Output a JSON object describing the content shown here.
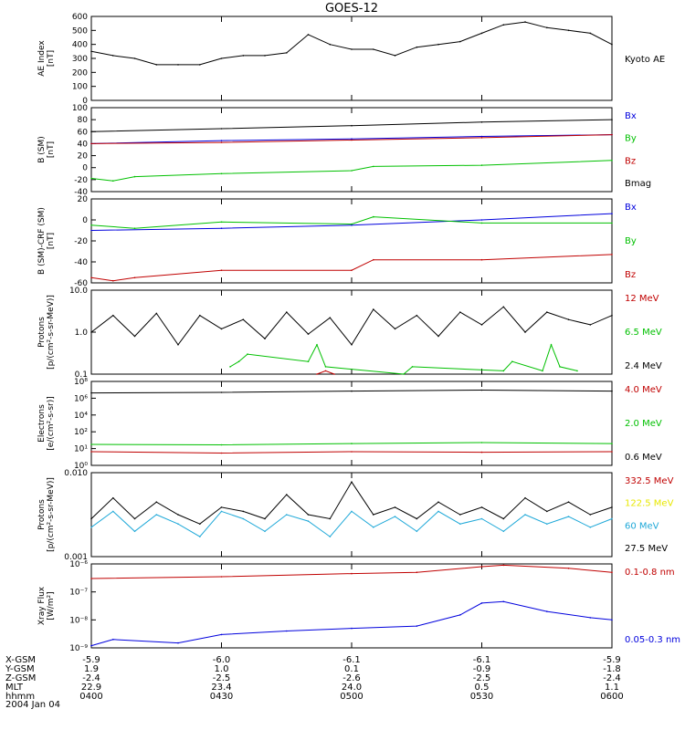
{
  "title": "GOES-12",
  "date_label": "2004 Jan 04",
  "colors": {
    "black": "#000000",
    "red": "#c00000",
    "green": "#00c000",
    "blue": "#0000dd",
    "yellow": "#e8e800",
    "cyan": "#1ea8d8"
  },
  "orbit": {
    "rows": [
      {
        "label": "X-GSM",
        "values": [
          "-5.9",
          "-6.0",
          "-6.1",
          "-6.1",
          "-5.9"
        ]
      },
      {
        "label": "Y-GSM",
        "values": [
          "1.9",
          "1.0",
          "0.1",
          "-0.9",
          "-1.8"
        ]
      },
      {
        "label": "Z-GSM",
        "values": [
          "-2.4",
          "-2.5",
          "-2.6",
          "-2.5",
          "-2.4"
        ]
      },
      {
        "label": "MLT",
        "values": [
          "22.9",
          "23.4",
          "24.0",
          "0.5",
          "1.1"
        ]
      },
      {
        "label": "hhmm",
        "values": [
          "0400",
          "0430",
          "0500",
          "0530",
          "0600"
        ]
      }
    ]
  },
  "chart_data": [
    {
      "type": "line",
      "ylabel": [
        "AE Index",
        "[nT]"
      ],
      "ylim": [
        0,
        600
      ],
      "ytick_labels": [
        "0",
        "100",
        "200",
        "300",
        "400",
        "500",
        "600"
      ],
      "series": [
        {
          "name": "Kyoto AE",
          "color": "black",
          "x_minutes": [
            0,
            5,
            10,
            15,
            20,
            25,
            30,
            35,
            40,
            45,
            50,
            55,
            60,
            65,
            70,
            75,
            80,
            85,
            90,
            95,
            100,
            105,
            110,
            115,
            120
          ],
          "values": [
            350,
            320,
            300,
            255,
            255,
            255,
            300,
            320,
            320,
            340,
            470,
            400,
            365,
            365,
            320,
            380,
            400,
            420,
            480,
            540,
            560,
            520,
            500,
            480,
            400
          ]
        }
      ]
    },
    {
      "type": "line",
      "ylabel": [
        "B (SM)",
        "[nT]"
      ],
      "ylim": [
        -40,
        100
      ],
      "ytick_labels": [
        "-40",
        "-20",
        "0",
        "20",
        "40",
        "60",
        "80",
        "100"
      ],
      "series": [
        {
          "name": "Bx",
          "color": "blue",
          "x_minutes": [
            0,
            30,
            60,
            90,
            120
          ],
          "values": [
            40,
            45,
            48,
            52,
            55
          ]
        },
        {
          "name": "By",
          "color": "green",
          "x_minutes": [
            0,
            5,
            10,
            30,
            60,
            65,
            90,
            120
          ],
          "values": [
            -18,
            -22,
            -15,
            -10,
            -5,
            2,
            4,
            12
          ]
        },
        {
          "name": "Bz",
          "color": "red",
          "x_minutes": [
            0,
            30,
            60,
            90,
            120
          ],
          "values": [
            40,
            42,
            46,
            50,
            55
          ]
        },
        {
          "name": "Bmag",
          "color": "black",
          "x_minutes": [
            0,
            30,
            60,
            90,
            120
          ],
          "values": [
            60,
            65,
            70,
            76,
            80
          ]
        }
      ]
    },
    {
      "type": "line",
      "ylabel": [
        "B (SM)-CRF (SM)",
        "[nT]"
      ],
      "ylim": [
        -60,
        20
      ],
      "ytick_labels": [
        "-60",
        "-40",
        "-20",
        "0",
        "20"
      ],
      "series": [
        {
          "name": "Bx",
          "color": "blue",
          "x_minutes": [
            0,
            30,
            60,
            90,
            120
          ],
          "values": [
            -10,
            -8,
            -5,
            0,
            6
          ]
        },
        {
          "name": "By",
          "color": "green",
          "x_minutes": [
            0,
            10,
            30,
            60,
            65,
            90,
            120
          ],
          "values": [
            -5,
            -8,
            -2,
            -4,
            3,
            -3,
            -3
          ]
        },
        {
          "name": "Bz",
          "color": "red",
          "x_minutes": [
            0,
            5,
            10,
            30,
            60,
            65,
            90,
            120
          ],
          "values": [
            -55,
            -58,
            -55,
            -48,
            -48,
            -38,
            -38,
            -33
          ]
        }
      ]
    },
    {
      "type": "line",
      "ylabel": [
        "Protons",
        "[p/(cm²-s-sr-MeV)]"
      ],
      "yscale": "log",
      "ylim": [
        0.1,
        10
      ],
      "ytick_labels": [
        "0.1",
        "1.0",
        "10.0"
      ],
      "series": [
        {
          "name": "12 MeV",
          "color": "red",
          "x_minutes": [
            52,
            54,
            56
          ],
          "values": [
            0.1,
            0.12,
            0.1
          ]
        },
        {
          "name": "6.5 MeV",
          "color": "green",
          "x_minutes": [
            32,
            34,
            36,
            50,
            52,
            54,
            72,
            74,
            95,
            97,
            104,
            106,
            108,
            112
          ],
          "values": [
            0.15,
            0.2,
            0.3,
            0.2,
            0.5,
            0.15,
            0.1,
            0.15,
            0.12,
            0.2,
            0.12,
            0.5,
            0.15,
            0.12
          ]
        },
        {
          "name": "2.4 MeV",
          "color": "black",
          "x_minutes": [
            0,
            5,
            10,
            15,
            20,
            25,
            30,
            35,
            40,
            45,
            50,
            55,
            60,
            65,
            70,
            75,
            80,
            85,
            90,
            95,
            100,
            105,
            110,
            115,
            120
          ],
          "values": [
            1.0,
            2.5,
            0.8,
            2.8,
            0.5,
            2.5,
            1.2,
            2.0,
            0.7,
            3.0,
            0.9,
            2.2,
            0.5,
            3.5,
            1.2,
            2.5,
            0.8,
            3.0,
            1.5,
            4.0,
            1.0,
            3.0,
            2.0,
            1.5,
            2.5
          ]
        }
      ]
    },
    {
      "type": "line",
      "ylabel": [
        "Electrons",
        "[e/(cm²-s-sr)]"
      ],
      "yscale": "log",
      "ylim": [
        1,
        100000000
      ],
      "ytick_labels": [
        "10⁰",
        "10¹",
        "10²",
        "10⁴",
        "10⁶",
        "10⁸"
      ],
      "series": [
        {
          "name": "4.0 MeV",
          "color": "red",
          "x_minutes": [
            0,
            30,
            60,
            90,
            120
          ],
          "values": [
            20,
            15,
            20,
            18,
            20
          ]
        },
        {
          "name": "2.0 MeV",
          "color": "green",
          "x_minutes": [
            0,
            30,
            60,
            90,
            120
          ],
          "values": [
            100,
            90,
            120,
            150,
            120
          ]
        },
        {
          "name": "0.6 MeV",
          "color": "black",
          "x_minutes": [
            0,
            30,
            60,
            90,
            120
          ],
          "values": [
            8000000,
            9000000,
            12000000,
            15000000,
            12000000
          ]
        }
      ]
    },
    {
      "type": "line",
      "ylabel": [
        "Protons",
        "[p/(cm²-s-sr-MeV)]"
      ],
      "yscale": "log",
      "ylim": [
        0.001,
        0.1
      ],
      "ytick_labels": [
        "0.001",
        "0.010"
      ],
      "series": [
        {
          "name": "332.5 MeV",
          "color": "red",
          "x_minutes": [],
          "values": []
        },
        {
          "name": "122.5 MeV",
          "color": "yellow",
          "x_minutes": [],
          "values": []
        },
        {
          "name": "60 MeV",
          "color": "cyan",
          "x_minutes": [
            0,
            5,
            10,
            15,
            20,
            25,
            30,
            35,
            40,
            45,
            50,
            55,
            60,
            65,
            70,
            75,
            80,
            85,
            90,
            95,
            100,
            105,
            110,
            115,
            120
          ],
          "values": [
            0.005,
            0.012,
            0.004,
            0.01,
            0.006,
            0.003,
            0.012,
            0.008,
            0.004,
            0.01,
            0.007,
            0.003,
            0.012,
            0.005,
            0.009,
            0.004,
            0.012,
            0.006,
            0.008,
            0.004,
            0.01,
            0.006,
            0.009,
            0.005,
            0.008
          ]
        },
        {
          "name": "27.5 MeV",
          "color": "black",
          "x_minutes": [
            0,
            5,
            10,
            15,
            20,
            25,
            30,
            35,
            40,
            45,
            50,
            55,
            60,
            65,
            70,
            75,
            80,
            85,
            90,
            95,
            100,
            105,
            110,
            115,
            120
          ],
          "values": [
            0.008,
            0.025,
            0.008,
            0.02,
            0.01,
            0.006,
            0.015,
            0.012,
            0.008,
            0.03,
            0.01,
            0.008,
            0.06,
            0.01,
            0.015,
            0.008,
            0.02,
            0.01,
            0.015,
            0.008,
            0.025,
            0.012,
            0.02,
            0.01,
            0.015
          ]
        }
      ]
    },
    {
      "type": "line",
      "ylabel": [
        "Xray Flux",
        "[W/m²]"
      ],
      "yscale": "log",
      "ylim": [
        1e-09,
        1e-06
      ],
      "ytick_labels": [
        "10⁻⁹",
        "10⁻⁸",
        "10⁻⁷",
        "10⁻⁶"
      ],
      "series": [
        {
          "name": "0.1-0.8 nm",
          "color": "red",
          "x_minutes": [
            0,
            30,
            60,
            75,
            90,
            95,
            110,
            120
          ],
          "values": [
            3e-07,
            3.5e-07,
            4.5e-07,
            5e-07,
            8e-07,
            9e-07,
            7e-07,
            5e-07
          ]
        },
        {
          "name": "0.05-0.3 nm",
          "color": "blue",
          "x_minutes": [
            0,
            5,
            20,
            30,
            45,
            60,
            75,
            85,
            90,
            95,
            105,
            115,
            120
          ],
          "values": [
            1.2e-09,
            2e-09,
            1.5e-09,
            3e-09,
            4e-09,
            5e-09,
            6e-09,
            1.5e-08,
            4e-08,
            4.5e-08,
            2e-08,
            1.2e-08,
            1e-08
          ]
        }
      ]
    }
  ]
}
